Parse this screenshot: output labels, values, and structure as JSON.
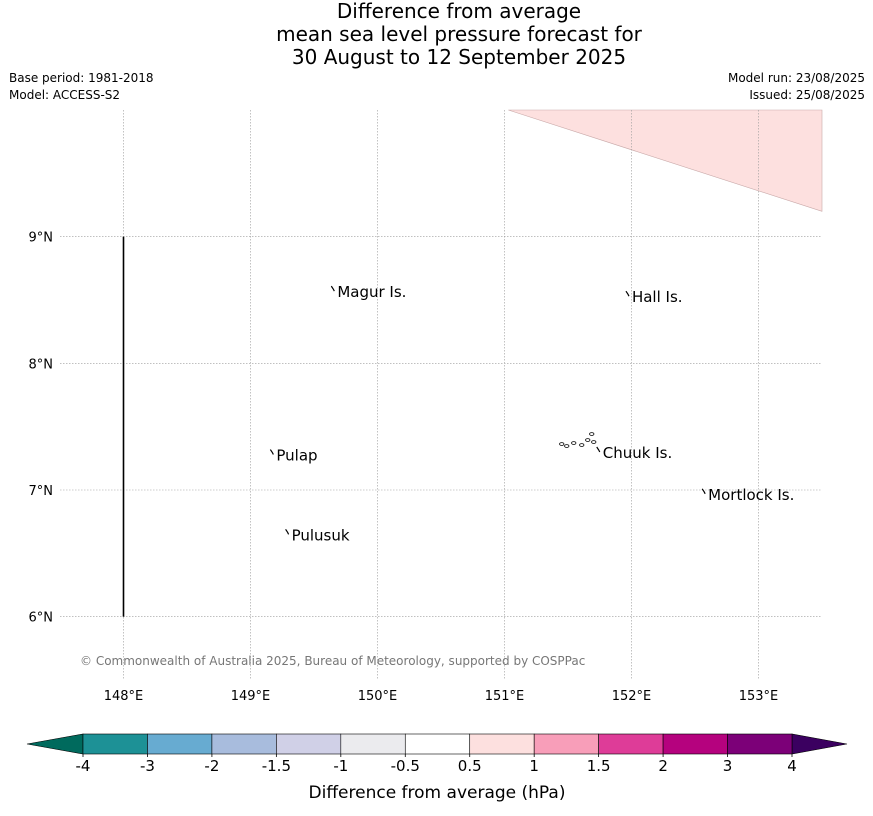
{
  "title": {
    "line1": "Difference from average",
    "line2": "mean sea level pressure forecast for",
    "line3": "30 August to 12 September 2025"
  },
  "meta": {
    "base_period": "Base period: 1981-2018",
    "model": "Model: ACCESS-S2",
    "model_run": "Model run: 23/08/2025",
    "issued": "Issued: 25/08/2025"
  },
  "map": {
    "extent": {
      "lon_min": 147.5,
      "lon_max": 153.5,
      "lat_min": 5.5,
      "lat_max": 10.0
    },
    "lon_ticks": [
      {
        "value": 148,
        "label": "148°E"
      },
      {
        "value": 149,
        "label": "149°E"
      },
      {
        "value": 150,
        "label": "150°E"
      },
      {
        "value": 151,
        "label": "151°E"
      },
      {
        "value": 152,
        "label": "152°E"
      },
      {
        "value": 153,
        "label": "153°E"
      }
    ],
    "lat_ticks": [
      {
        "value": 9,
        "label": "9°N"
      },
      {
        "value": 8,
        "label": "8°N"
      },
      {
        "value": 7,
        "label": "7°N"
      },
      {
        "value": 6,
        "label": "6°N"
      }
    ],
    "gridline_color": "#9a9a9a",
    "boundary_line": {
      "lon": 148,
      "lat_from": 6,
      "lat_to": 9,
      "color": "#000000"
    },
    "anomaly_region": {
      "bin": "0.5 to 1",
      "color": "#fde0df",
      "points": [
        [
          151.03,
          10.0
        ],
        [
          153.5,
          10.0
        ],
        [
          153.5,
          9.2
        ]
      ]
    },
    "islands": [
      {
        "name": "Magur Is.",
        "lon": 149.66,
        "lat": 8.57
      },
      {
        "name": "Hall Is.",
        "lon": 151.98,
        "lat": 8.53
      },
      {
        "name": "Pulap",
        "lon": 149.18,
        "lat": 7.28
      },
      {
        "name": "Chuuk Is.",
        "lon": 151.75,
        "lat": 7.3
      },
      {
        "name": "Mortlock Is.",
        "lon": 152.58,
        "lat": 6.97
      },
      {
        "name": "Pulusuk",
        "lon": 149.3,
        "lat": 6.65
      }
    ],
    "copyright": "© Commonwealth of Australia 2025, Bureau of Meteorology, supported by COSPPac",
    "copyright_color": "#777777"
  },
  "colorbar": {
    "label": "Difference from average (hPa)",
    "tick_labels": [
      "-4",
      "-3",
      "-2",
      "-1.5",
      "-1",
      "-0.5",
      "0.5",
      "1",
      "1.5",
      "2",
      "3",
      "4"
    ],
    "under_color": "#006a5d",
    "over_color": "#3b0060",
    "colors": [
      "#1d9196",
      "#67abd1",
      "#a8bcdd",
      "#d0d0e7",
      "#ebebee",
      "#ffffff",
      "#fde0df",
      "#f89eb9",
      "#de3c98",
      "#b5027e",
      "#7c0078"
    ]
  }
}
